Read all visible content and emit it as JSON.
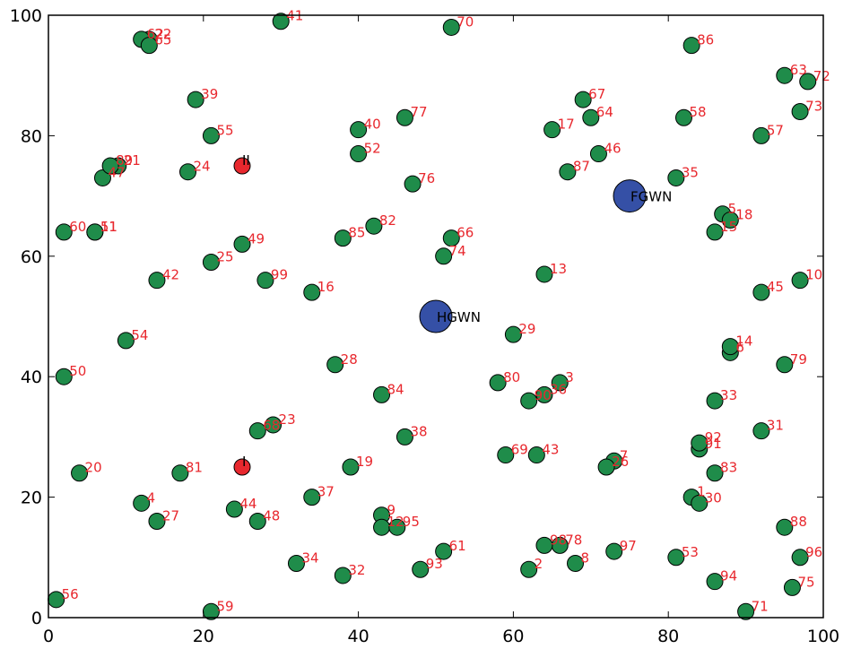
{
  "chart_data": {
    "type": "scatter",
    "title": "",
    "xlabel": "",
    "ylabel": "",
    "xlim": [
      0,
      100
    ],
    "ylim": [
      0,
      100
    ],
    "grid": false,
    "x_ticks": [
      0,
      20,
      40,
      60,
      80,
      100
    ],
    "y_ticks": [
      0,
      20,
      40,
      60,
      80,
      100
    ],
    "colors": {
      "green_point": "#1f8c4a",
      "red_point": "#e8282e",
      "blue_point": "#3550a6",
      "point_label": "#e8282e",
      "hub_label": "#000000"
    },
    "series": [
      {
        "kind": "numbered-points",
        "points": [
          {
            "label": "1",
            "x": 83,
            "y": 20
          },
          {
            "label": "2",
            "x": 62,
            "y": 8
          },
          {
            "label": "3",
            "x": 66,
            "y": 39
          },
          {
            "label": "4",
            "x": 12,
            "y": 19
          },
          {
            "label": "5",
            "x": 87,
            "y": 67
          },
          {
            "label": "6",
            "x": 88,
            "y": 44
          },
          {
            "label": "7",
            "x": 73,
            "y": 26
          },
          {
            "label": "8",
            "x": 68,
            "y": 9
          },
          {
            "label": "9",
            "x": 43,
            "y": 17
          },
          {
            "label": "10",
            "x": 97,
            "y": 56
          },
          {
            "label": "11",
            "x": 6,
            "y": 64
          },
          {
            "label": "12",
            "x": 43,
            "y": 15
          },
          {
            "label": "13",
            "x": 64,
            "y": 57
          },
          {
            "label": "14",
            "x": 88,
            "y": 45
          },
          {
            "label": "15",
            "x": 86,
            "y": 64
          },
          {
            "label": "16",
            "x": 34,
            "y": 54
          },
          {
            "label": "17",
            "x": 65,
            "y": 81
          },
          {
            "label": "18",
            "x": 88,
            "y": 66
          },
          {
            "label": "19",
            "x": 39,
            "y": 25
          },
          {
            "label": "20",
            "x": 4,
            "y": 24
          },
          {
            "label": "21",
            "x": 9,
            "y": 75
          },
          {
            "label": "22",
            "x": 13,
            "y": 96
          },
          {
            "label": "23",
            "x": 29,
            "y": 32
          },
          {
            "label": "24",
            "x": 18,
            "y": 74
          },
          {
            "label": "25",
            "x": 21,
            "y": 59
          },
          {
            "label": "26",
            "x": 72,
            "y": 25
          },
          {
            "label": "27",
            "x": 14,
            "y": 16
          },
          {
            "label": "28",
            "x": 37,
            "y": 42
          },
          {
            "label": "29",
            "x": 60,
            "y": 47
          },
          {
            "label": "30",
            "x": 84,
            "y": 19
          },
          {
            "label": "31",
            "x": 92,
            "y": 31
          },
          {
            "label": "32",
            "x": 38,
            "y": 7
          },
          {
            "label": "33",
            "x": 86,
            "y": 36
          },
          {
            "label": "34",
            "x": 32,
            "y": 9
          },
          {
            "label": "35",
            "x": 81,
            "y": 73
          },
          {
            "label": "36",
            "x": 64,
            "y": 37
          },
          {
            "label": "37",
            "x": 34,
            "y": 20
          },
          {
            "label": "38",
            "x": 46,
            "y": 30
          },
          {
            "label": "39",
            "x": 19,
            "y": 86
          },
          {
            "label": "40",
            "x": 40,
            "y": 81
          },
          {
            "label": "41",
            "x": 30,
            "y": 99
          },
          {
            "label": "42",
            "x": 14,
            "y": 56
          },
          {
            "label": "43",
            "x": 63,
            "y": 27
          },
          {
            "label": "44",
            "x": 24,
            "y": 18
          },
          {
            "label": "45",
            "x": 92,
            "y": 54
          },
          {
            "label": "46",
            "x": 71,
            "y": 77
          },
          {
            "label": "47",
            "x": 7,
            "y": 73
          },
          {
            "label": "48",
            "x": 27,
            "y": 16
          },
          {
            "label": "49",
            "x": 25,
            "y": 62
          },
          {
            "label": "50",
            "x": 2,
            "y": 40
          },
          {
            "label": "51",
            "x": 6,
            "y": 64
          },
          {
            "label": "52",
            "x": 40,
            "y": 77
          },
          {
            "label": "53",
            "x": 81,
            "y": 10
          },
          {
            "label": "54",
            "x": 10,
            "y": 46
          },
          {
            "label": "55",
            "x": 21,
            "y": 80
          },
          {
            "label": "56",
            "x": 1,
            "y": 3
          },
          {
            "label": "57",
            "x": 92,
            "y": 80
          },
          {
            "label": "58",
            "x": 82,
            "y": 83
          },
          {
            "label": "59",
            "x": 21,
            "y": 1
          },
          {
            "label": "60",
            "x": 2,
            "y": 64
          },
          {
            "label": "61",
            "x": 51,
            "y": 11
          },
          {
            "label": "62",
            "x": 12,
            "y": 96
          },
          {
            "label": "63",
            "x": 95,
            "y": 90
          },
          {
            "label": "64",
            "x": 70,
            "y": 83
          },
          {
            "label": "65",
            "x": 13,
            "y": 95
          },
          {
            "label": "66",
            "x": 52,
            "y": 63
          },
          {
            "label": "67",
            "x": 69,
            "y": 86
          },
          {
            "label": "68",
            "x": 27,
            "y": 31
          },
          {
            "label": "69",
            "x": 59,
            "y": 27
          },
          {
            "label": "70",
            "x": 52,
            "y": 98
          },
          {
            "label": "71",
            "x": 90,
            "y": 1
          },
          {
            "label": "72",
            "x": 98,
            "y": 89
          },
          {
            "label": "73",
            "x": 97,
            "y": 84
          },
          {
            "label": "74",
            "x": 51,
            "y": 60
          },
          {
            "label": "75",
            "x": 96,
            "y": 5
          },
          {
            "label": "76",
            "x": 47,
            "y": 72
          },
          {
            "label": "77",
            "x": 46,
            "y": 83
          },
          {
            "label": "78",
            "x": 66,
            "y": 12
          },
          {
            "label": "79",
            "x": 95,
            "y": 42
          },
          {
            "label": "80",
            "x": 58,
            "y": 39
          },
          {
            "label": "81",
            "x": 17,
            "y": 24
          },
          {
            "label": "82",
            "x": 42,
            "y": 65
          },
          {
            "label": "83",
            "x": 86,
            "y": 24
          },
          {
            "label": "84",
            "x": 43,
            "y": 37
          },
          {
            "label": "85",
            "x": 38,
            "y": 63
          },
          {
            "label": "86",
            "x": 83,
            "y": 95
          },
          {
            "label": "87",
            "x": 67,
            "y": 74
          },
          {
            "label": "88",
            "x": 95,
            "y": 15
          },
          {
            "label": "89",
            "x": 8,
            "y": 75
          },
          {
            "label": "90",
            "x": 62,
            "y": 36
          },
          {
            "label": "91",
            "x": 84,
            "y": 28
          },
          {
            "label": "92",
            "x": 84,
            "y": 29
          },
          {
            "label": "93",
            "x": 48,
            "y": 8
          },
          {
            "label": "94",
            "x": 86,
            "y": 6
          },
          {
            "label": "95",
            "x": 45,
            "y": 15
          },
          {
            "label": "96",
            "x": 97,
            "y": 10
          },
          {
            "label": "97",
            "x": 73,
            "y": 11
          },
          {
            "label": "98",
            "x": 64,
            "y": 12
          },
          {
            "label": "99",
            "x": 28,
            "y": 56
          }
        ]
      },
      {
        "kind": "marked-points",
        "points": [
          {
            "label": "I",
            "x": 25,
            "y": 25
          },
          {
            "label": "II",
            "x": 25,
            "y": 75
          }
        ]
      },
      {
        "kind": "hubs",
        "points": [
          {
            "label": "HGWN",
            "x": 50,
            "y": 50
          },
          {
            "label": "FGWN",
            "x": 75,
            "y": 70
          }
        ]
      }
    ]
  }
}
